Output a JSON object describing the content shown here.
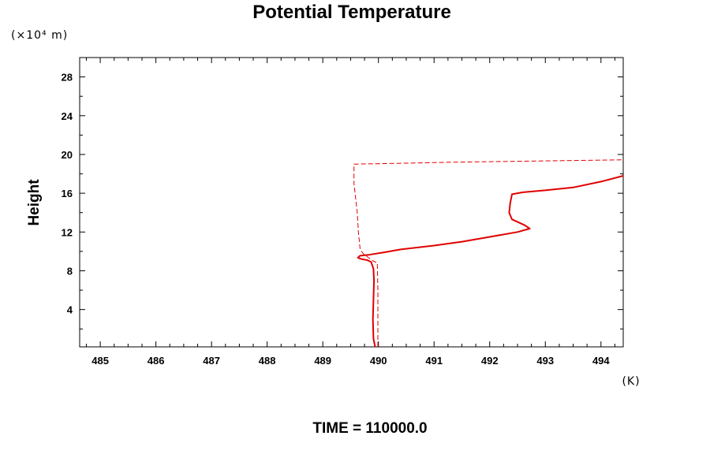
{
  "chart_data": {
    "type": "line",
    "title": "Potential Temperature",
    "ylabel": "Height",
    "y_unit_label": "(×10⁴ m)",
    "x_unit_label": "(K)",
    "footer": "TIME = 110000.0",
    "xlim": [
      484.63,
      494.4
    ],
    "ylim": [
      0.15,
      30
    ],
    "x_ticks": [
      485,
      486,
      487,
      488,
      489,
      490,
      491,
      492,
      493,
      494
    ],
    "y_ticks": [
      4,
      8,
      12,
      16,
      20,
      24,
      28
    ],
    "grid": false,
    "series": [
      {
        "style": "solid",
        "color": "#e00000",
        "points": [
          [
            489.94,
            0.15
          ],
          [
            489.91,
            1.0
          ],
          [
            489.9,
            3.0
          ],
          [
            489.91,
            5.0
          ],
          [
            489.92,
            7.0
          ],
          [
            489.91,
            8.2
          ],
          [
            489.87,
            8.9
          ],
          [
            489.8,
            9.1
          ],
          [
            489.7,
            9.2
          ],
          [
            489.63,
            9.35
          ],
          [
            489.67,
            9.55
          ],
          [
            489.83,
            9.65
          ],
          [
            490.1,
            9.9
          ],
          [
            490.4,
            10.2
          ],
          [
            491.0,
            10.6
          ],
          [
            491.5,
            11.0
          ],
          [
            492.0,
            11.5
          ],
          [
            492.5,
            12.0
          ],
          [
            492.72,
            12.35
          ],
          [
            492.63,
            12.7
          ],
          [
            492.4,
            13.3
          ],
          [
            492.35,
            14.0
          ],
          [
            492.37,
            15.0
          ],
          [
            492.4,
            15.9
          ],
          [
            492.6,
            16.1
          ],
          [
            493.0,
            16.3
          ],
          [
            493.5,
            16.6
          ],
          [
            494.0,
            17.2
          ],
          [
            494.4,
            17.8
          ]
        ]
      },
      {
        "style": "dashed",
        "color": "#e00000",
        "points": [
          [
            489.99,
            0.15
          ],
          [
            489.99,
            3.0
          ],
          [
            489.99,
            6.0
          ],
          [
            489.98,
            8.8
          ],
          [
            489.88,
            9.1
          ],
          [
            489.72,
            9.8
          ],
          [
            489.67,
            10.3
          ],
          [
            489.64,
            12.0
          ],
          [
            489.62,
            14.0
          ],
          [
            489.6,
            15.0
          ],
          [
            489.58,
            16.0
          ],
          [
            489.56,
            17.0
          ],
          [
            489.56,
            18.5
          ],
          [
            489.56,
            19.0
          ],
          [
            490.5,
            19.1
          ],
          [
            491.3,
            19.2
          ],
          [
            492.5,
            19.3
          ],
          [
            494.4,
            19.45
          ]
        ]
      }
    ]
  }
}
